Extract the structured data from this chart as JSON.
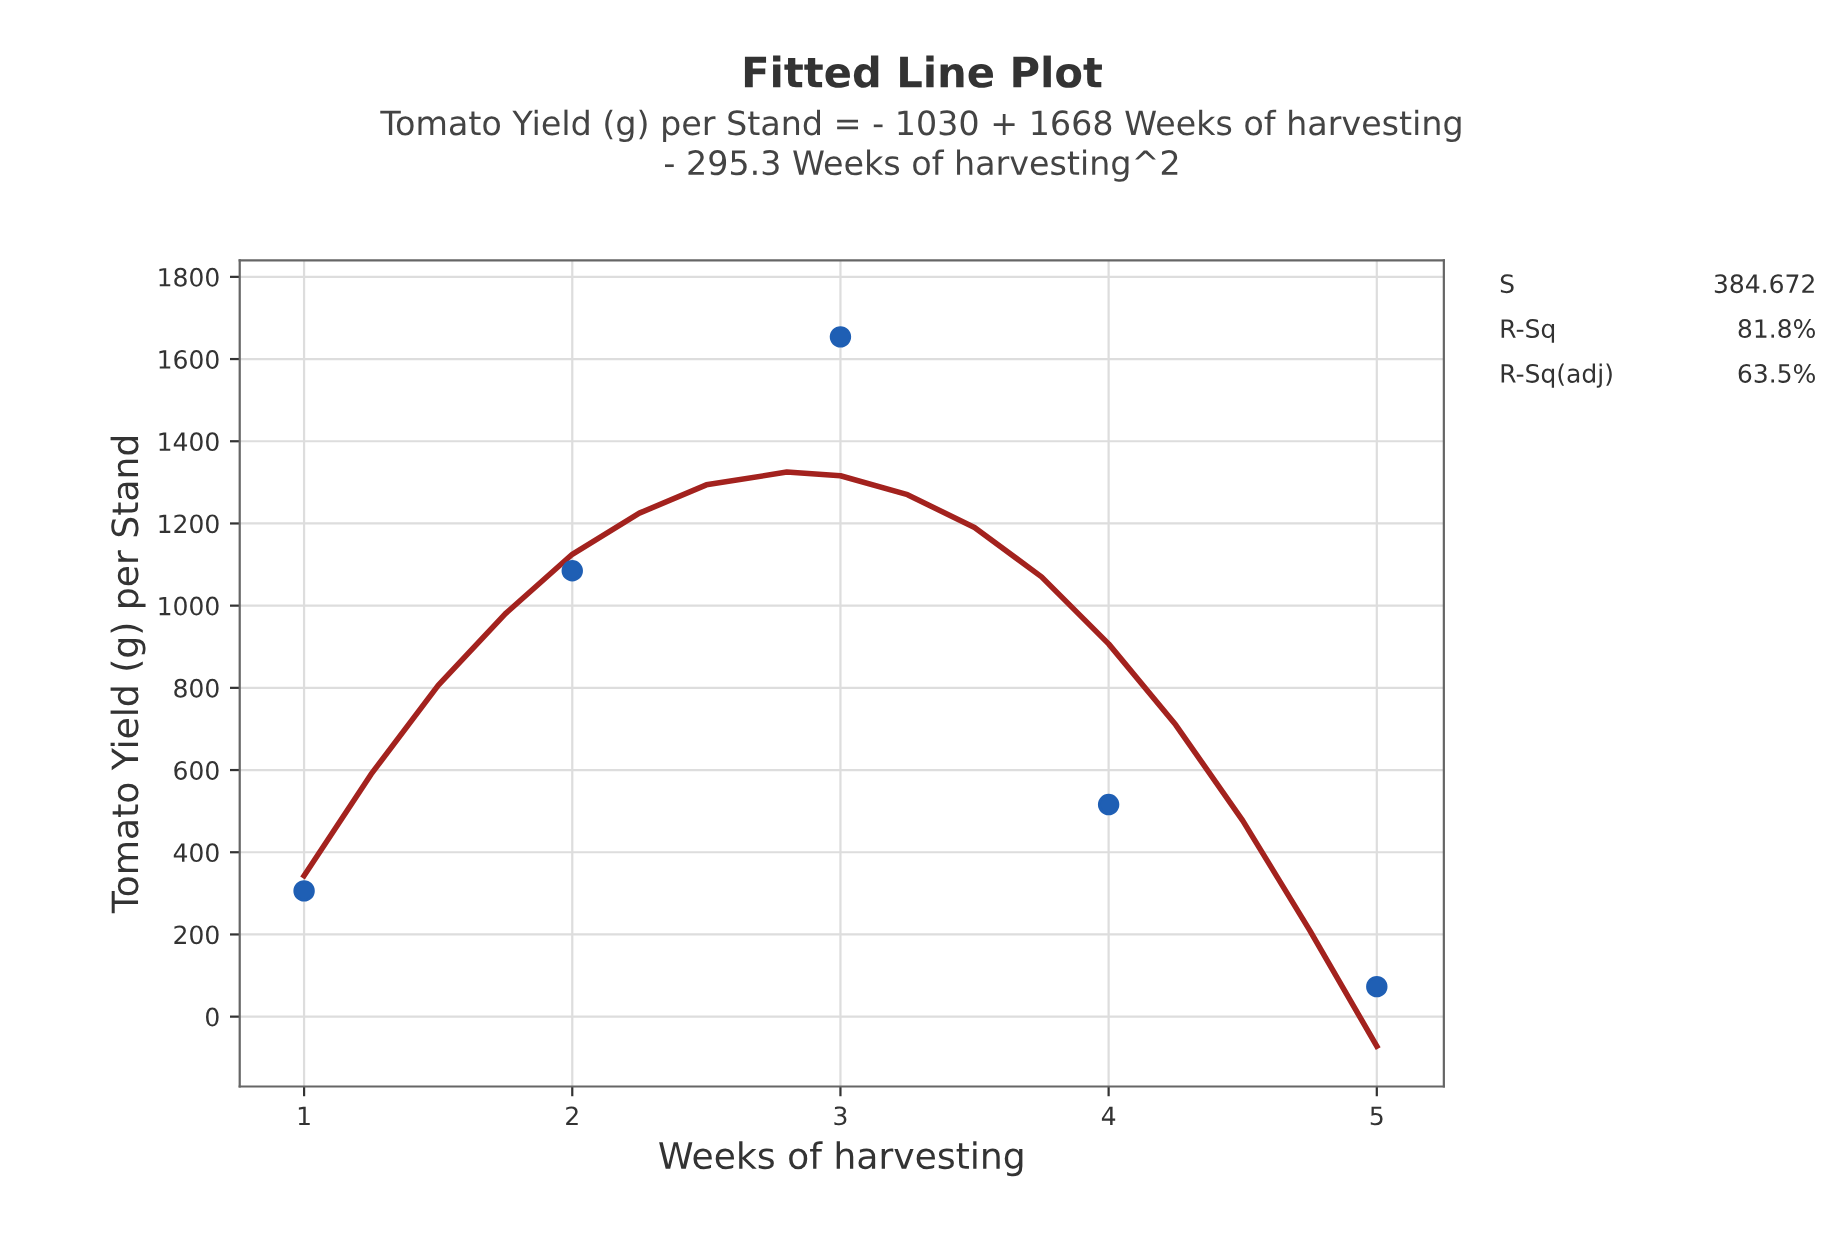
{
  "chart_data": {
    "type": "scatter",
    "title": "Fitted Line Plot",
    "subtitle": "Tomato Yield (g) per Stand = - 1030 + 1668 Weeks of harvesting\n- 295.3 Weeks of harvesting^2",
    "xlabel": "Weeks of harvesting",
    "ylabel": "Tomato Yield (g) per Stand",
    "series": [
      {
        "color": "#1f5fb4",
        "marker": "circle",
        "x": [
          1,
          2,
          3,
          4,
          5
        ],
        "values": [
          306,
          1085,
          1654,
          516,
          73
        ]
      },
      {
        "type": "line",
        "color": "#a3221e",
        "marker": "none",
        "line_style": "solid",
        "x": [
          1,
          1.25,
          1.5,
          1.75,
          2,
          2.25,
          2.5,
          2.8,
          3,
          3.25,
          3.5,
          3.75,
          4,
          4.25,
          4.5,
          4.75,
          5
        ],
        "values": [
          343,
          590,
          806,
          980,
          1125,
          1225,
          1294,
          1325,
          1316,
          1270,
          1190,
          1070,
          907,
          710,
          477,
          210,
          -72
        ]
      }
    ],
    "xlim": [
      0.76,
      5.25
    ],
    "xticks": [
      1,
      2,
      3,
      4,
      5
    ],
    "ylim": [
      -170,
      1840
    ],
    "yticks": [
      0,
      200,
      400,
      600,
      800,
      1000,
      1200,
      1400,
      1600,
      1800
    ],
    "grid": true,
    "legend": false,
    "annotations": [
      "S",
      "384.672",
      "R-Sq",
      "81.8%",
      "R-Sq(adj)",
      "63.5%"
    ]
  }
}
